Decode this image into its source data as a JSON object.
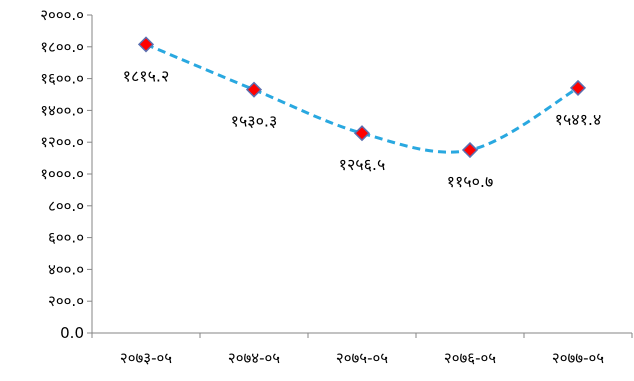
{
  "chart_data": {
    "type": "line",
    "title": "",
    "xlabel": "",
    "ylabel": "",
    "categories": [
      "२०७३-०५",
      "२०७४-०५",
      "२०७५-०५",
      "२०७६-०५",
      "२०७७-०५"
    ],
    "series": [
      {
        "values": [
          1815.2,
          1530.3,
          1256.5,
          1150.7,
          1541.4
        ],
        "data_labels": [
          "१८१५.२",
          "१५३०.३",
          "१२५६.५",
          "११५०.७",
          "१५४१.४"
        ],
        "line_color": "#29A8E0",
        "line_style": "dashed",
        "smoothed": true,
        "marker": "diamond",
        "marker_fill": "#FF0000",
        "marker_edge": "#5B6FB0"
      }
    ],
    "ylim": [
      0,
      2000
    ],
    "yticks": [
      0,
      200,
      400,
      600,
      800,
      1000,
      1200,
      1400,
      1600,
      1800,
      2000
    ],
    "ytick_labels": [
      "0.0",
      "२००.०",
      "४००.०",
      "६००.०",
      "८००.०",
      "१०००.०",
      "१२००.०",
      "१४००.०",
      "१६००.०",
      "१८००.०",
      "२०००.०"
    ],
    "grid": false,
    "legend": "none",
    "axis_color": "#868686"
  }
}
